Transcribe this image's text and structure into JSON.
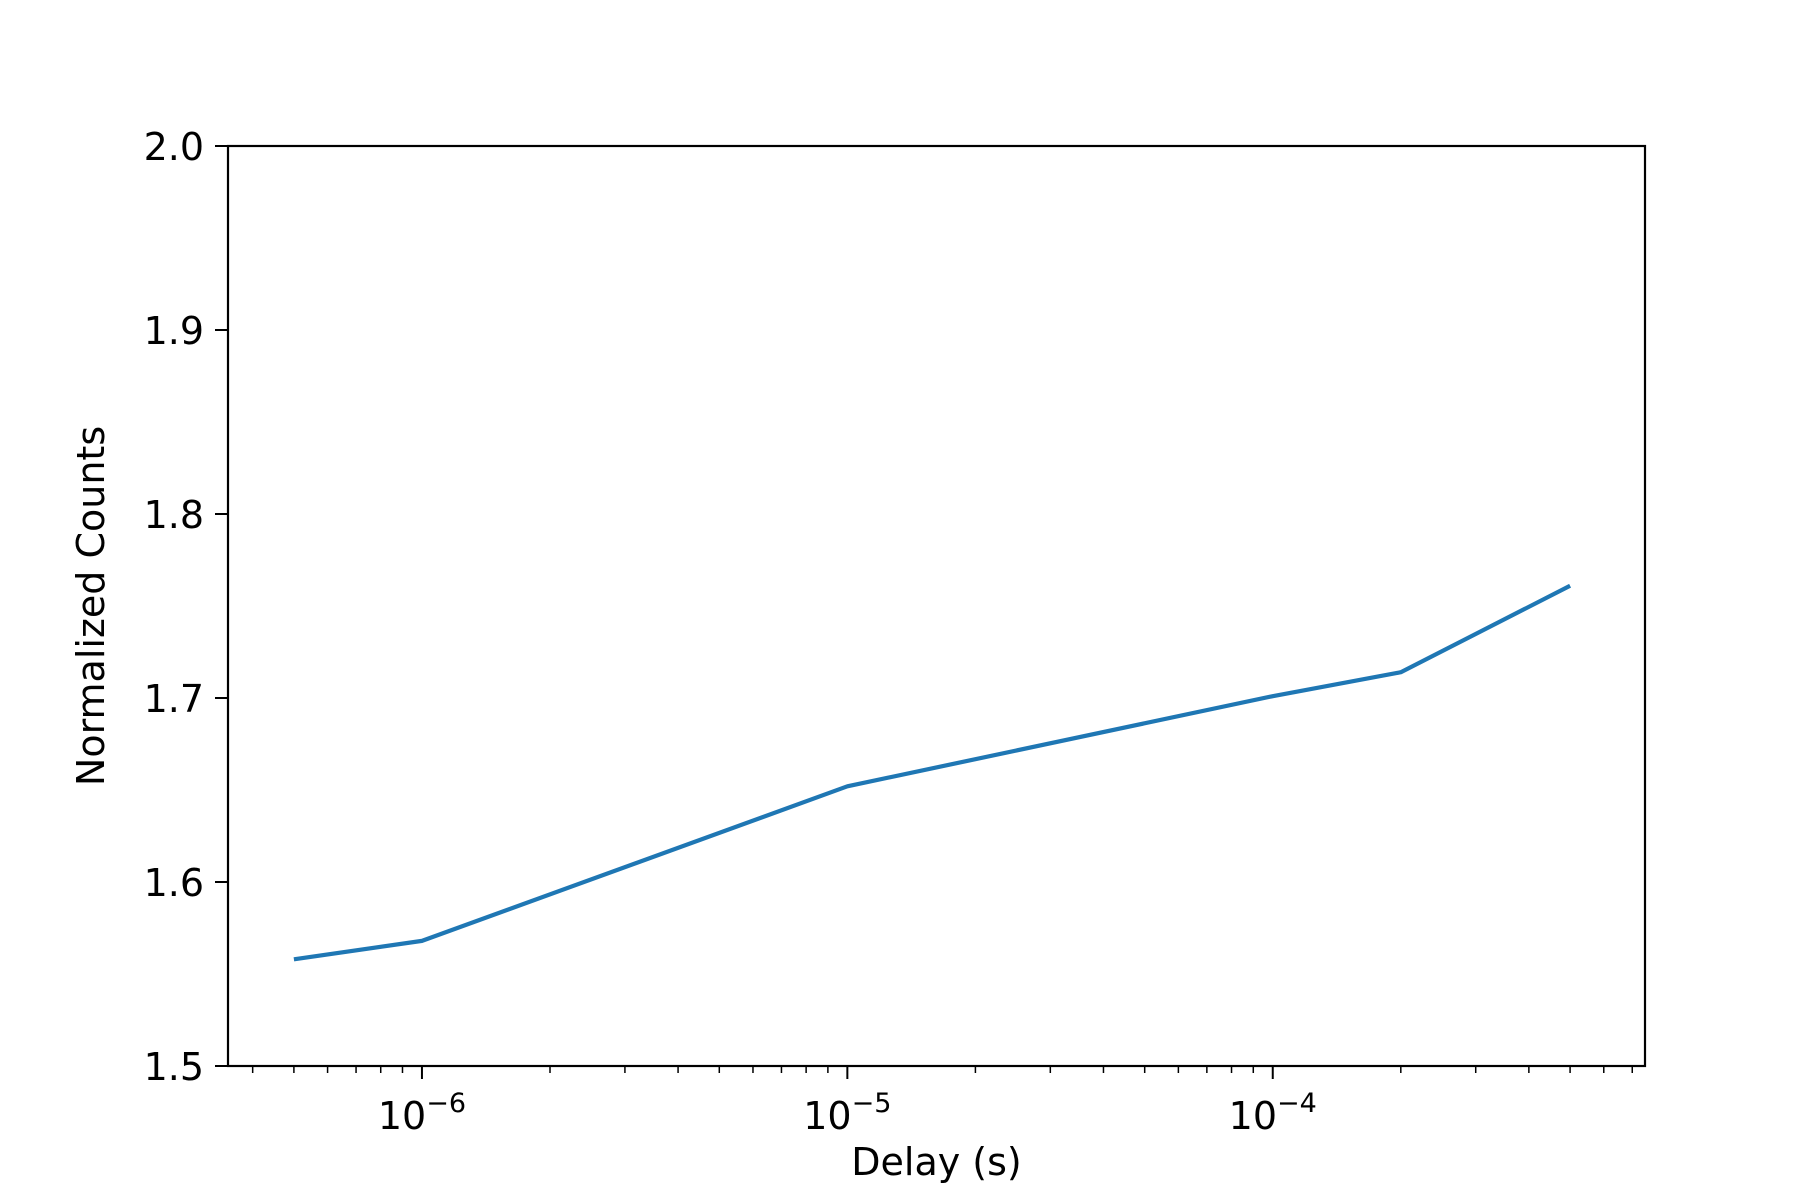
{
  "chart_data": {
    "type": "line",
    "title": "",
    "xlabel": "Delay (s)",
    "ylabel": "Normalized Counts",
    "x_scale": "log",
    "xlim": [
      3.5e-07,
      0.00075
    ],
    "ylim": [
      1.5,
      2.0
    ],
    "grid": false,
    "legend": "none",
    "x_ticks": [
      {
        "value": 1e-06,
        "base": "10",
        "exp": "−6"
      },
      {
        "value": 1e-05,
        "base": "10",
        "exp": "−5"
      },
      {
        "value": 0.0001,
        "base": "10",
        "exp": "−4"
      }
    ],
    "y_ticks": [
      {
        "value": 1.5,
        "label": "1.5"
      },
      {
        "value": 1.6,
        "label": "1.6"
      },
      {
        "value": 1.7,
        "label": "1.7"
      },
      {
        "value": 1.8,
        "label": "1.8"
      },
      {
        "value": 1.9,
        "label": "1.9"
      },
      {
        "value": 2.0,
        "label": "2.0"
      }
    ],
    "series": [
      {
        "color": "#1f77b4",
        "x": [
          5e-07,
          1e-06,
          1e-05,
          0.0001,
          0.0002,
          0.0005
        ],
        "y": [
          1.558,
          1.568,
          1.652,
          1.701,
          1.714,
          1.761
        ]
      }
    ]
  }
}
